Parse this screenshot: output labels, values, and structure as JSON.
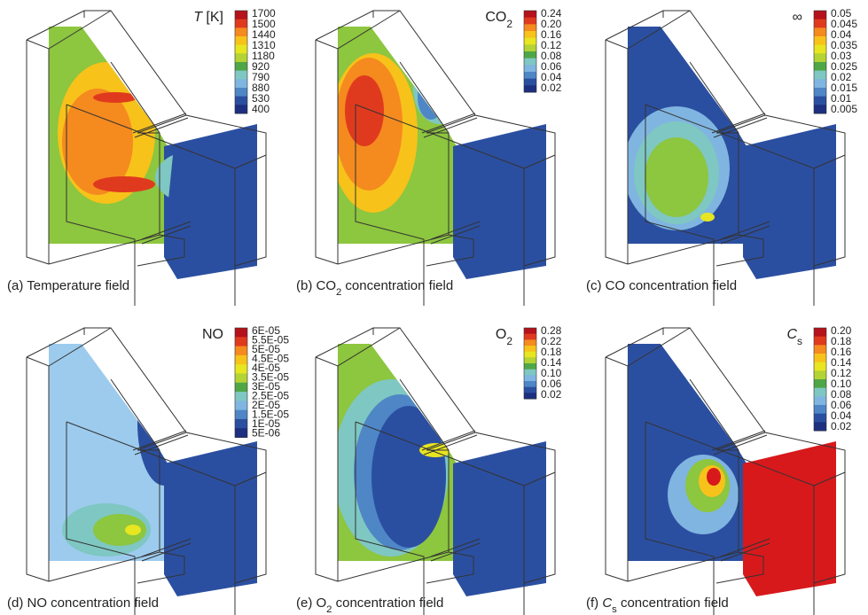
{
  "panels": [
    {
      "legend_title": [
        {
          "italic": "T"
        },
        {
          "text": " [K]"
        }
      ],
      "legend_ticks": [
        "1700",
        "1500",
        "1440",
        "1310",
        "1180",
        "920",
        "790",
        "880",
        "530",
        "400"
      ],
      "caption": [
        {
          "text": "(a) Temperature field"
        }
      ]
    },
    {
      "legend_title": [
        {
          "text": "CO"
        },
        {
          "sub": "2"
        }
      ],
      "legend_ticks": [
        "0.24",
        "0.20",
        "0.16",
        "0.12",
        "0.08",
        "0.06",
        "0.04",
        "0.02"
      ],
      "caption": [
        {
          "text": "(b) CO"
        },
        {
          "sub": "2"
        },
        {
          "text": " concentration field"
        }
      ]
    },
    {
      "legend_title": [
        {
          "text": "∞"
        }
      ],
      "legend_ticks": [
        "0.05",
        "0.045",
        "0.04",
        "0.035",
        "0.03",
        "0.025",
        "0.02",
        "0.015",
        "0.01",
        "0.005"
      ],
      "caption": [
        {
          "text": "(c) CO concentration field"
        }
      ]
    },
    {
      "legend_title": [
        {
          "text": "NO"
        }
      ],
      "legend_ticks": [
        "6E-05",
        "5.5E-05",
        "5E-05",
        "4.5E-05",
        "4E-05",
        "3.5E-05",
        "3E-05",
        "2.5E-05",
        "2E-05",
        "1.5E-05",
        "1E-05",
        "5E-06"
      ],
      "caption": [
        {
          "text": "(d) NO concentration field"
        }
      ]
    },
    {
      "legend_title": [
        {
          "text": "O"
        },
        {
          "sub": "2"
        }
      ],
      "legend_ticks": [
        "0.28",
        "0.22",
        "0.18",
        "0.14",
        "0.10",
        "0.06",
        "0.02"
      ],
      "caption": [
        {
          "text": "(e) O"
        },
        {
          "sub": "2"
        },
        {
          "text": " concentration field"
        }
      ]
    },
    {
      "legend_title": [
        {
          "italic": "C"
        },
        {
          "sub": "s"
        }
      ],
      "legend_ticks": [
        "0.20",
        "0.18",
        "0.16",
        "0.14",
        "0.12",
        "0.10",
        "0.08",
        "0.06",
        "0.04",
        "0.02"
      ],
      "caption": [
        {
          "text": "(f) "
        },
        {
          "italic": "C"
        },
        {
          "sub": "s"
        },
        {
          "text": " concentration field"
        }
      ]
    }
  ]
}
